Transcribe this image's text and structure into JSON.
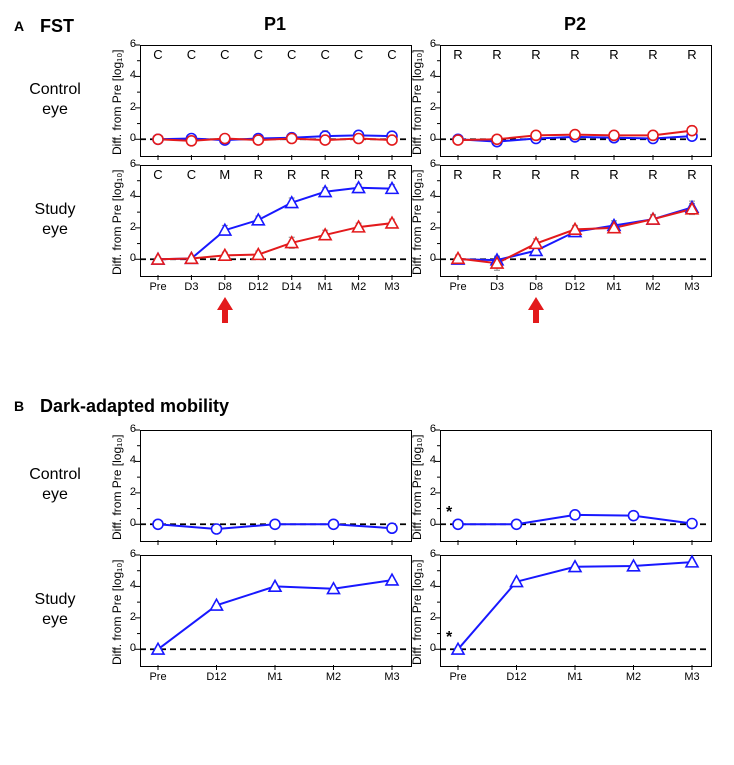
{
  "panel_labels": {
    "A": "A",
    "B": "B"
  },
  "section_titles": {
    "A": "FST",
    "B": "Dark-adapted mobility"
  },
  "col_titles": {
    "P1": "P1",
    "P2": "P2"
  },
  "row_labels": {
    "control": "Control\neye",
    "study": "Study\neye"
  },
  "y_axis": {
    "label": "Diff. from Pre [log₁₀]",
    "ticks_major": [
      0,
      2,
      4,
      6
    ],
    "ticks_minor": [
      1,
      3,
      5
    ],
    "ylim": [
      -1,
      6
    ]
  },
  "colors": {
    "blue": "#1818ff",
    "red": "#e31a1c",
    "gray": "#999999",
    "black": "#000000",
    "white": "#ffffff",
    "arrow_red": "#e31a1c"
  },
  "marker_size": 5,
  "line_width": 2,
  "error_width": 1.2,
  "x_ticks_A": [
    "Pre",
    "D3",
    "D8",
    "D12",
    "D14",
    "M1",
    "M2",
    "M3"
  ],
  "x_ticks_B": [
    "Pre",
    "D12",
    "M1",
    "M2",
    "M3"
  ],
  "arrow_at": "D8",
  "A": {
    "P1": {
      "control": {
        "annot": [
          "C",
          "C",
          "C",
          "C",
          "C",
          "C",
          "C",
          "C"
        ],
        "blue": {
          "y": [
            0.0,
            0.05,
            -0.05,
            0.05,
            0.1,
            0.2,
            0.25,
            0.2
          ],
          "err": [
            0.1,
            0.25,
            0.25,
            0.22,
            0.25,
            0.35,
            0.3,
            0.3
          ]
        },
        "red": {
          "y": [
            0.0,
            -0.1,
            0.05,
            -0.05,
            0.05,
            -0.05,
            0.05,
            -0.05
          ],
          "err": [
            0.1,
            0.22,
            0.2,
            0.2,
            0.2,
            0.25,
            0.22,
            0.22
          ]
        }
      },
      "study": {
        "annot": [
          "C",
          "C",
          "M",
          "R",
          "R",
          "R",
          "R",
          "R"
        ],
        "blue": {
          "y": [
            0.0,
            0.05,
            1.85,
            2.5,
            3.6,
            4.3,
            4.55,
            4.5
          ],
          "err": [
            0.1,
            0.15,
            0.3,
            0.25,
            0.3,
            0.25,
            0.22,
            0.25
          ]
        },
        "red": {
          "y": [
            0.0,
            0.05,
            0.25,
            0.3,
            1.05,
            1.55,
            2.05,
            2.3
          ],
          "err": [
            0.1,
            0.12,
            0.2,
            0.22,
            0.35,
            0.3,
            0.25,
            0.25
          ]
        }
      }
    },
    "P2": {
      "control": {
        "annot": [
          "R",
          "R",
          "R",
          "R",
          "R",
          "R",
          "R"
        ],
        "blue": {
          "y": [
            0.0,
            -0.15,
            0.05,
            0.15,
            0.1,
            0.05,
            0.2
          ],
          "err": [
            0.1,
            0.2,
            0.2,
            0.22,
            0.22,
            0.22,
            0.25
          ]
        },
        "red": {
          "y": [
            -0.05,
            0.0,
            0.25,
            0.3,
            0.25,
            0.25,
            0.55
          ],
          "err": [
            0.25,
            0.22,
            0.2,
            0.2,
            0.2,
            0.2,
            0.3
          ]
        }
      },
      "study": {
        "annot": [
          "R",
          "R",
          "R",
          "R",
          "R",
          "R",
          "R"
        ],
        "blue": {
          "y": [
            0.0,
            -0.05,
            0.55,
            1.75,
            2.15,
            2.55,
            3.3
          ],
          "err": [
            0.1,
            0.2,
            0.25,
            0.3,
            0.3,
            0.3,
            0.4
          ]
        },
        "red": {
          "y": [
            0.05,
            -0.25,
            1.0,
            1.9,
            2.0,
            2.55,
            3.2
          ],
          "err": [
            0.22,
            0.45,
            0.3,
            0.25,
            0.25,
            0.25,
            0.35
          ]
        }
      }
    }
  },
  "B": {
    "P1": {
      "control": {
        "y": [
          0.0,
          -0.3,
          0.0,
          0.0,
          -0.25
        ]
      },
      "study": {
        "y": [
          0.0,
          2.8,
          4.0,
          3.85,
          4.4
        ]
      }
    },
    "P2": {
      "control": {
        "y": [
          0.0,
          0.0,
          0.6,
          0.55,
          0.05
        ],
        "asterisk_on_pre": true
      },
      "study": {
        "y": [
          0.0,
          4.3,
          5.25,
          5.3,
          5.55
        ],
        "asterisk_on_pre": true
      }
    }
  }
}
